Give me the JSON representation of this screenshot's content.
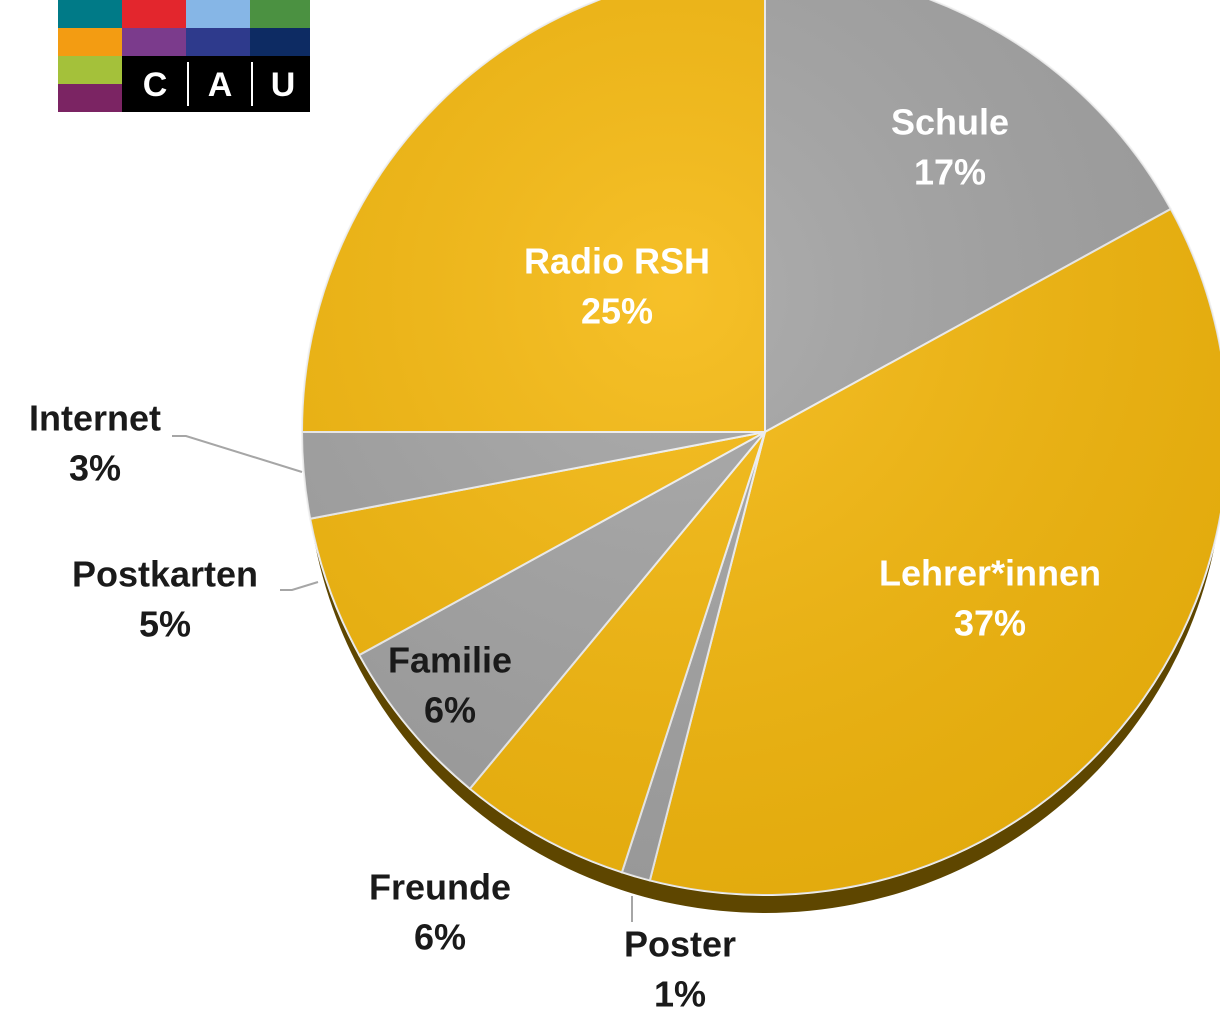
{
  "logo": {
    "letters": [
      "C",
      "A",
      "U"
    ]
  },
  "chart_data": {
    "type": "pie",
    "categories": [
      "Schule",
      "Lehrer*innen",
      "Poster",
      "Freunde",
      "Familie",
      "Postkarten",
      "Internet",
      "Radio RSH"
    ],
    "values": [
      17,
      37,
      1,
      6,
      6,
      5,
      3,
      25
    ],
    "value_labels": [
      "17%",
      "37%",
      "1%",
      "6%",
      "6%",
      "5%",
      "3%",
      "25%"
    ],
    "colors": [
      "#a3a3a3",
      "#f5b80c",
      "#a3a3a3",
      "#f5b80c",
      "#a3a3a3",
      "#f5b80c",
      "#a3a3a3",
      "#f5b80c"
    ]
  }
}
